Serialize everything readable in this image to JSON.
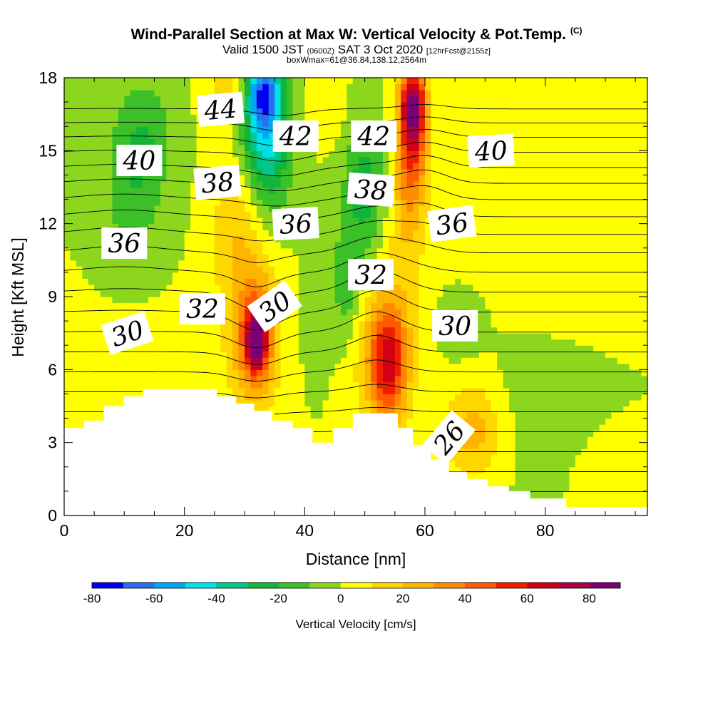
{
  "title": {
    "main": "Wind-Parallel Section at Max W: Vertical Velocity & Pot.Temp.",
    "copyright": "(C)",
    "valid_prefix": "Valid 1500 JST",
    "utc": "(0600Z)",
    "valid_date": "SAT 3 Oct 2020",
    "forecast": "[12hrFcst@2155z]",
    "boxwmax": "boxWmax=61@36.84,138.12,2564m"
  },
  "chart_data": {
    "type": "heatmap",
    "xlabel": "Distance [nm]",
    "ylabel": "Height [Kft MSL]",
    "xlim": [
      0,
      97
    ],
    "ylim": [
      0,
      18
    ],
    "x_ticks": [
      0,
      20,
      40,
      60,
      80
    ],
    "y_ticks": [
      0,
      3,
      6,
      9,
      12,
      15,
      18
    ],
    "colorbar": {
      "label": "Vertical Velocity [cm/s]",
      "min": -80,
      "max": 90,
      "step": 10,
      "tick_labels": [
        "-80",
        "-60",
        "-40",
        "-20",
        "0",
        "20",
        "40",
        "60",
        "80"
      ],
      "colors": [
        "#0000f0",
        "#2a6ef0",
        "#00a6f5",
        "#00e0e8",
        "#00c88c",
        "#12b43c",
        "#3cc028",
        "#8cd71e",
        "#ffff00",
        "#ffd700",
        "#ffb400",
        "#ff8c00",
        "#ff5a00",
        "#f01e00",
        "#d20014",
        "#aa0046",
        "#7a0078"
      ]
    },
    "velocity_features": [
      {
        "x": 33,
        "y": 17.5,
        "w": -45,
        "rx": 3,
        "ry": 1.2
      },
      {
        "x": 33,
        "y": 16.3,
        "w": -35,
        "rx": 3.5,
        "ry": 2.0
      },
      {
        "x": 34,
        "y": 14.5,
        "w": -25,
        "rx": 4,
        "ry": 3.0
      },
      {
        "x": 13,
        "y": 15.5,
        "w": -20,
        "rx": 5,
        "ry": 2.5
      },
      {
        "x": 11,
        "y": 12.5,
        "w": -12,
        "rx": 5,
        "ry": 2.5
      },
      {
        "x": 50,
        "y": 13.5,
        "w": -25,
        "rx": 3.5,
        "ry": 3.0
      },
      {
        "x": 47,
        "y": 9.5,
        "w": -18,
        "rx": 2.5,
        "ry": 2.5
      },
      {
        "x": 42,
        "y": 8.0,
        "w": -10,
        "rx": 2,
        "ry": 2
      },
      {
        "x": 66,
        "y": 8.0,
        "w": -15,
        "rx": 3,
        "ry": 1.2
      },
      {
        "x": 58,
        "y": 17,
        "w": 60,
        "rx": 2,
        "ry": 1.5
      },
      {
        "x": 58,
        "y": 15.5,
        "w": 40,
        "rx": 2.5,
        "ry": 2.5
      },
      {
        "x": 57,
        "y": 13,
        "w": 20,
        "rx": 3,
        "ry": 3.5
      },
      {
        "x": 32,
        "y": 7.2,
        "w": 55,
        "rx": 1.5,
        "ry": 1.0
      },
      {
        "x": 32,
        "y": 7.2,
        "w": 40,
        "rx": 3,
        "ry": 2.2
      },
      {
        "x": 31,
        "y": 8.5,
        "w": 20,
        "rx": 5,
        "ry": 4.5
      },
      {
        "x": 28,
        "y": 12,
        "w": 12,
        "rx": 4,
        "ry": 3
      },
      {
        "x": 54,
        "y": 6.3,
        "w": 45,
        "rx": 3,
        "ry": 2.2
      },
      {
        "x": 53,
        "y": 6.8,
        "w": 25,
        "rx": 5,
        "ry": 3.5
      },
      {
        "x": 68,
        "y": 3.5,
        "w": 25,
        "rx": 5,
        "ry": 2
      },
      {
        "x": 28,
        "y": 17.5,
        "w": 18,
        "rx": 4,
        "ry": 1.5
      },
      {
        "x": 44,
        "y": 17,
        "w": 10,
        "rx": 3,
        "ry": 1.5
      },
      {
        "x": 70,
        "y": 12,
        "w": 5,
        "rx": 10,
        "ry": 3
      },
      {
        "x": 84,
        "y": 11,
        "w": 4,
        "rx": 10,
        "ry": 5
      },
      {
        "x": 12,
        "y": 6.5,
        "w": 2,
        "rx": 14,
        "ry": 3
      },
      {
        "x": 80,
        "y": 4.5,
        "w": -6,
        "rx": 10,
        "ry": 3
      },
      {
        "x": 90,
        "y": 2,
        "w": 4,
        "rx": 7,
        "ry": 2
      }
    ],
    "terrain_kft": [
      [
        0,
        3.6
      ],
      [
        3.3,
        3.9
      ],
      [
        6.6,
        4.5
      ],
      [
        9.9,
        4.9
      ],
      [
        13.2,
        5.2
      ],
      [
        25.4,
        4.9
      ],
      [
        28.6,
        4.6
      ],
      [
        31.6,
        4.3
      ],
      [
        34.6,
        3.9
      ],
      [
        38.0,
        3.6
      ],
      [
        41.3,
        3.0
      ],
      [
        44.7,
        3.6
      ],
      [
        48.0,
        4.2
      ],
      [
        55.5,
        3.6
      ],
      [
        58.0,
        2.9
      ],
      [
        61.0,
        2.3
      ],
      [
        64.0,
        1.8
      ],
      [
        67.0,
        1.5
      ],
      [
        70.5,
        1.2
      ],
      [
        74.0,
        1.0
      ],
      [
        77.5,
        0.7
      ],
      [
        83.5,
        0.35
      ],
      [
        97,
        0.35
      ]
    ],
    "isentrope_step": 1,
    "isentrope_min": 25,
    "isentrope_max": 47,
    "isentrope_labels": [
      {
        "text": "44",
        "x": 26,
        "y": 16.7,
        "rot": -5
      },
      {
        "text": "40",
        "x": 12.5,
        "y": 14.6,
        "rot": 0
      },
      {
        "text": "42",
        "x": 38.5,
        "y": 15.6,
        "rot": 0
      },
      {
        "text": "42",
        "x": 51.5,
        "y": 15.6,
        "rot": 0
      },
      {
        "text": "40",
        "x": 71,
        "y": 15.0,
        "rot": -3
      },
      {
        "text": "38",
        "x": 25.5,
        "y": 13.7,
        "rot": -5
      },
      {
        "text": "38",
        "x": 51,
        "y": 13.4,
        "rot": 4
      },
      {
        "text": "36",
        "x": 38.5,
        "y": 12.0,
        "rot": -3
      },
      {
        "text": "36",
        "x": 64.5,
        "y": 12.0,
        "rot": -8
      },
      {
        "text": "36",
        "x": 10,
        "y": 11.2,
        "rot": 0
      },
      {
        "text": "32",
        "x": 51,
        "y": 9.9,
        "rot": 0
      },
      {
        "text": "32",
        "x": 23,
        "y": 8.5,
        "rot": 0
      },
      {
        "text": "30",
        "x": 35,
        "y": 8.6,
        "rot": -35
      },
      {
        "text": "30",
        "x": 65,
        "y": 7.8,
        "rot": 0
      },
      {
        "text": "30",
        "x": 10.5,
        "y": 7.5,
        "rot": -18
      },
      {
        "text": "26",
        "x": 64,
        "y": 3.2,
        "rot": -50
      }
    ]
  }
}
